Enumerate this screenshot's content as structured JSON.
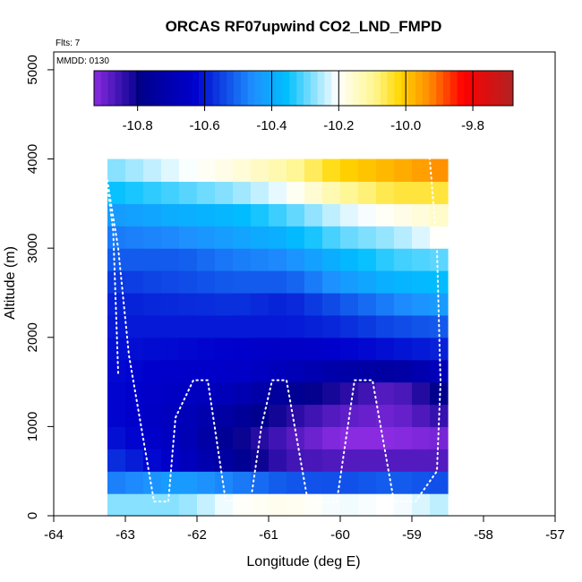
{
  "chart_data": {
    "type": "heatmap",
    "title": "ORCAS RF07upwind CO2_LND_FMPD",
    "note_flights": "Flts: 7",
    "note_date": "MMDD: 0130",
    "xlabel": "Longitude (deg E)",
    "ylabel": "Altitude (m)",
    "xlim": [
      -64,
      -57
    ],
    "ylim": [
      0,
      5200
    ],
    "x_ticks": [
      "-64",
      "-63",
      "-62",
      "-61",
      "-60",
      "-59",
      "-58",
      "-57"
    ],
    "y_ticks": [
      "0",
      "1000",
      "2000",
      "3000",
      "4000",
      "5000"
    ],
    "colorbar": {
      "min": -10.93,
      "max": -9.68,
      "ticks": [
        "-10.8",
        "-10.6",
        "-10.4",
        "-10.2",
        "-10.0",
        "-9.8"
      ],
      "tick_values": [
        -10.8,
        -10.6,
        -10.4,
        -10.2,
        -10.0,
        -9.8
      ],
      "colors": [
        "#8a2be2",
        "#00008b",
        "#0000cd",
        "#1e90ff",
        "#00bfff",
        "#ffffff",
        "#fff68f",
        "#ffd700",
        "#ff8c00",
        "#ff0000",
        "#b22222"
      ],
      "stops": [
        0,
        0.11,
        0.24,
        0.38,
        0.46,
        0.58,
        0.67,
        0.73,
        0.8,
        0.88,
        1.0
      ]
    },
    "grid": {
      "lon_start": -63.25,
      "lon_step": 0.25,
      "alt_step": 250,
      "anchors_lon": [
        -63.1,
        -62.25,
        -61.5,
        -60.75,
        -60.0,
        -59.25,
        -58.6
      ],
      "profile": [
        [
          0,
          -10.15
        ],
        [
          250,
          -10.4
        ],
        [
          500,
          -10.55
        ],
        [
          750,
          -10.6
        ],
        [
          1000,
          -10.62
        ],
        [
          1250,
          -10.63
        ],
        [
          1500,
          -10.62
        ],
        [
          1750,
          -10.62
        ],
        [
          2000,
          -10.6
        ],
        [
          2250,
          -10.6
        ],
        [
          2500,
          -10.58
        ],
        [
          2750,
          -10.54
        ],
        [
          3000,
          -10.5
        ],
        [
          3250,
          -10.46
        ],
        [
          3500,
          -10.4
        ],
        [
          3750,
          -10.3
        ],
        [
          4000,
          -10.25
        ]
      ],
      "anchor_offsets": [
        [
          0.0,
          0.0,
          0.0,
          0.0,
          0.0,
          0.0,
          0.0,
          0.0,
          0.0,
          0.0,
          0.0,
          0.0,
          0.0,
          0.0,
          0.0,
          0.0
        ],
        [
          0.0,
          0.05,
          -0.08,
          -0.06,
          -0.05,
          -0.03,
          -0.02,
          -0.01,
          0.0,
          0.01,
          0.02,
          0.0,
          0.02,
          0.04,
          0.04,
          0.06
        ],
        [
          0.12,
          0.0,
          -0.18,
          -0.18,
          -0.12,
          -0.06,
          -0.02,
          -0.02,
          0.0,
          0.02,
          0.04,
          0.04,
          0.06,
          0.06,
          0.08,
          0.1
        ],
        [
          0.15,
          -0.05,
          -0.28,
          -0.26,
          -0.2,
          -0.14,
          -0.06,
          -0.04,
          0.0,
          0.0,
          0.04,
          0.06,
          0.1,
          0.12,
          0.14,
          0.16
        ],
        [
          0.1,
          -0.06,
          -0.3,
          -0.32,
          -0.26,
          -0.2,
          -0.1,
          -0.02,
          0.02,
          0.06,
          0.12,
          0.14,
          0.18,
          0.2,
          0.24,
          0.26
        ],
        [
          0.12,
          -0.04,
          -0.3,
          -0.32,
          -0.28,
          -0.26,
          -0.12,
          0.0,
          0.06,
          0.12,
          0.18,
          0.2,
          0.22,
          0.24,
          0.3,
          0.3
        ],
        [
          0.05,
          -0.06,
          -0.3,
          -0.3,
          -0.22,
          -0.16,
          -0.06,
          0.02,
          0.08,
          0.16,
          0.2,
          0.22,
          0.28,
          0.28,
          0.3,
          0.34
        ]
      ]
    },
    "flight_track": {
      "lon": [
        -63.1,
        -63.17,
        -63.3,
        -63.1,
        -62.95,
        -62.6,
        -62.4,
        -62.3,
        -62.05,
        -61.85,
        -61.6,
        -61.25,
        -61.1,
        -60.95,
        -60.75,
        -60.45,
        -60.05,
        -59.8,
        -59.55,
        -59.25,
        -58.95,
        -58.65,
        -58.6,
        -58.65,
        -58.75
      ],
      "alt": [
        1600,
        3200,
        4000,
        3000,
        1800,
        160,
        160,
        1100,
        1520,
        1520,
        170,
        170,
        1000,
        1520,
        1520,
        150,
        150,
        1520,
        1520,
        160,
        160,
        500,
        1500,
        3000,
        4000
      ]
    }
  }
}
